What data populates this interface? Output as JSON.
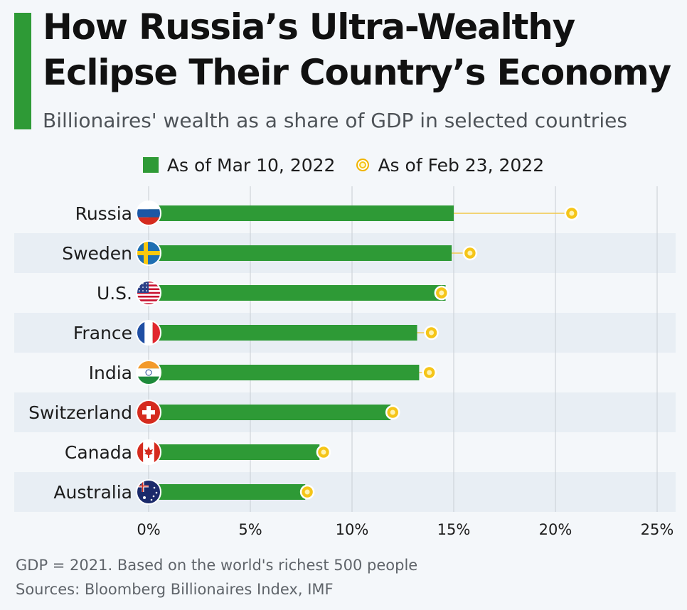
{
  "header": {
    "title_line1": "How Russia’s Ultra-Wealthy",
    "title_line2": "Eclipse Their Country’s Economy",
    "subtitle": "Billionaires' wealth as a share of GDP in selected countries"
  },
  "legend": {
    "series1": "As of Mar 10, 2022",
    "series2": "As of Feb 23, 2022"
  },
  "colors": {
    "bar": "#2e9a36",
    "dot": "#f5c518",
    "stripe": "#e8eef4"
  },
  "chart_data": {
    "type": "bar",
    "orientation": "horizontal",
    "categories": [
      "Russia",
      "Sweden",
      "U.S.",
      "France",
      "India",
      "Switzerland",
      "Canada",
      "Australia"
    ],
    "series": [
      {
        "name": "As of Mar 10, 2022",
        "marker": "bar",
        "values": [
          15.0,
          14.9,
          14.6,
          13.2,
          13.3,
          11.9,
          8.4,
          7.7
        ]
      },
      {
        "name": "As of Feb 23, 2022",
        "marker": "dot",
        "values": [
          20.8,
          15.8,
          14.4,
          13.9,
          13.8,
          12.0,
          8.6,
          7.8
        ]
      }
    ],
    "x_ticks": [
      "0%",
      "5%",
      "10%",
      "15%",
      "20%",
      "25%"
    ],
    "xlim": [
      0,
      25
    ],
    "flag_icons": [
      "russia-flag-icon",
      "sweden-flag-icon",
      "us-flag-icon",
      "france-flag-icon",
      "india-flag-icon",
      "switzerland-flag-icon",
      "canada-flag-icon",
      "australia-flag-icon"
    ]
  },
  "footer": {
    "note": "GDP = 2021. Based on the world's richest 500 people",
    "sources": "Sources: Bloomberg Billionaires Index, IMF"
  }
}
